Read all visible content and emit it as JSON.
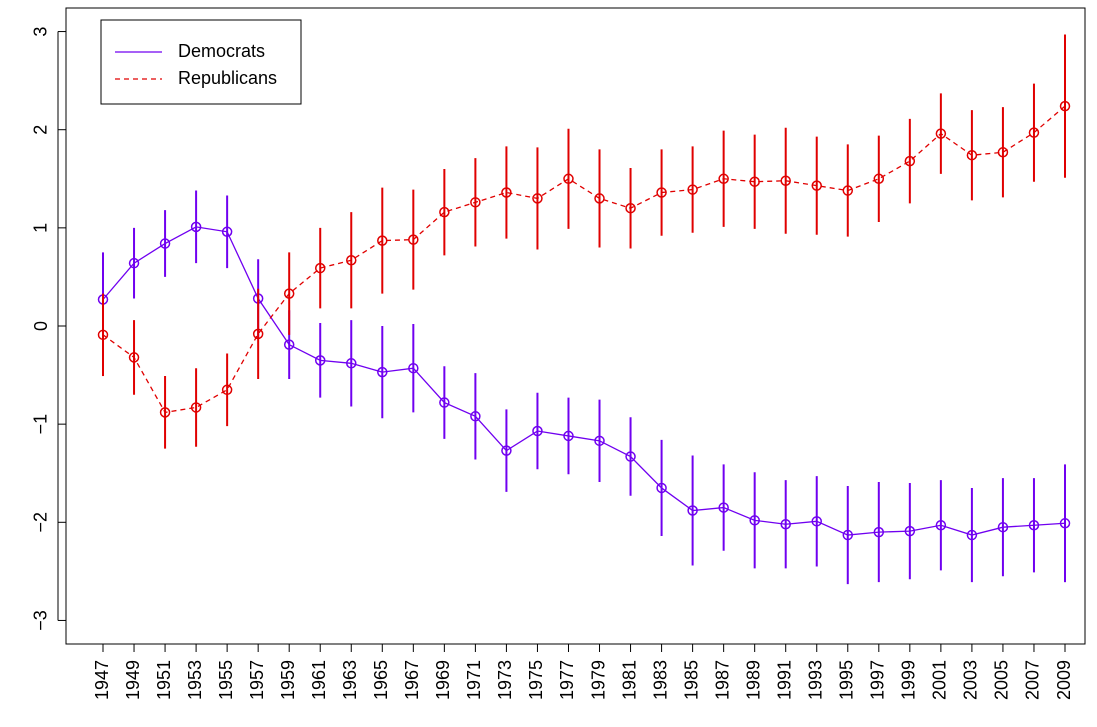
{
  "chart_data": {
    "type": "line",
    "categories": [
      "1947",
      "1949",
      "1951",
      "1953",
      "1955",
      "1957",
      "1959",
      "1961",
      "1963",
      "1965",
      "1967",
      "1969",
      "1971",
      "1973",
      "1975",
      "1977",
      "1979",
      "1981",
      "1983",
      "1985",
      "1987",
      "1989",
      "1991",
      "1993",
      "1995",
      "1997",
      "1999",
      "2001",
      "2003",
      "2005",
      "2007",
      "2009"
    ],
    "series": [
      {
        "name": "Democrats",
        "color": "#7000f0",
        "linestyle": "solid",
        "values": [
          0.27,
          0.64,
          0.84,
          1.01,
          0.96,
          0.28,
          -0.19,
          -0.35,
          -0.38,
          -0.47,
          -0.43,
          -0.78,
          -0.92,
          -1.27,
          -1.07,
          -1.12,
          -1.17,
          -1.33,
          -1.65,
          -1.88,
          -1.85,
          -1.98,
          -2.02,
          -1.99,
          -2.13,
          -2.1,
          -2.09,
          -2.03,
          -2.13,
          -2.05,
          -2.03,
          -2.01
        ],
        "errors": [
          0.48,
          0.36,
          0.34,
          0.37,
          0.37,
          0.4,
          0.35,
          0.38,
          0.44,
          0.47,
          0.45,
          0.37,
          0.44,
          0.42,
          0.39,
          0.39,
          0.42,
          0.4,
          0.49,
          0.56,
          0.44,
          0.49,
          0.45,
          0.46,
          0.5,
          0.51,
          0.49,
          0.46,
          0.48,
          0.5,
          0.48,
          0.6
        ]
      },
      {
        "name": "Republicans",
        "color": "#e00000",
        "linestyle": "dashed",
        "values": [
          -0.09,
          -0.32,
          -0.88,
          -0.83,
          -0.65,
          -0.08,
          0.33,
          0.59,
          0.67,
          0.87,
          0.88,
          1.16,
          1.26,
          1.36,
          1.3,
          1.5,
          1.3,
          1.2,
          1.36,
          1.39,
          1.5,
          1.47,
          1.48,
          1.43,
          1.38,
          1.5,
          1.68,
          1.96,
          1.74,
          1.77,
          1.97,
          2.24
        ],
        "errors": [
          0.42,
          0.38,
          0.37,
          0.4,
          0.37,
          0.46,
          0.42,
          0.41,
          0.49,
          0.54,
          0.51,
          0.44,
          0.45,
          0.47,
          0.52,
          0.51,
          0.5,
          0.41,
          0.44,
          0.44,
          0.49,
          0.48,
          0.54,
          0.5,
          0.47,
          0.44,
          0.43,
          0.41,
          0.46,
          0.46,
          0.5,
          0.73
        ]
      }
    ],
    "ylim": [
      -3.24,
      3.24
    ],
    "yticks": [
      {
        "value": -3,
        "label": "−3"
      },
      {
        "value": -2,
        "label": "−2"
      },
      {
        "value": -1,
        "label": "−1"
      },
      0,
      1,
      2,
      3
    ],
    "legend": "top-left",
    "grid": false
  }
}
